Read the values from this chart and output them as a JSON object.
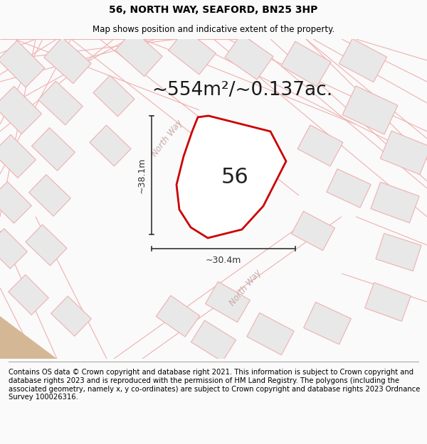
{
  "title": "56, NORTH WAY, SEAFORD, BN25 3HP",
  "subtitle": "Map shows position and indicative extent of the property.",
  "area_text": "~554m²/~0.137ac.",
  "property_number": "56",
  "dim_width": "~30.4m",
  "dim_height": "~38.1m",
  "background_color": "#fafafa",
  "map_bg_color": "#f8f5f3",
  "property_polygon_color": "#cc0000",
  "cadastral_line_color": "#f0b0b0",
  "cadastral_fill_color": "#e8e8e8",
  "footer_text": "Contains OS data © Crown copyright and database right 2021. This information is subject to Crown copyright and database rights 2023 and is reproduced with the permission of HM Land Registry. The polygons (including the associated geometry, namely x, y co-ordinates) are subject to Crown copyright and database rights 2023 Ordnance Survey 100026316.",
  "road_label_upper": "North Way",
  "road_label_lower": "North Way",
  "title_fontsize": 10,
  "subtitle_fontsize": 8.5,
  "area_fontsize": 19,
  "footer_fontsize": 7.2,
  "road_label_color": "#c8a8a8",
  "dim_line_color": "#333333",
  "property_number_fontsize": 22,
  "property_number_color": "#222222"
}
